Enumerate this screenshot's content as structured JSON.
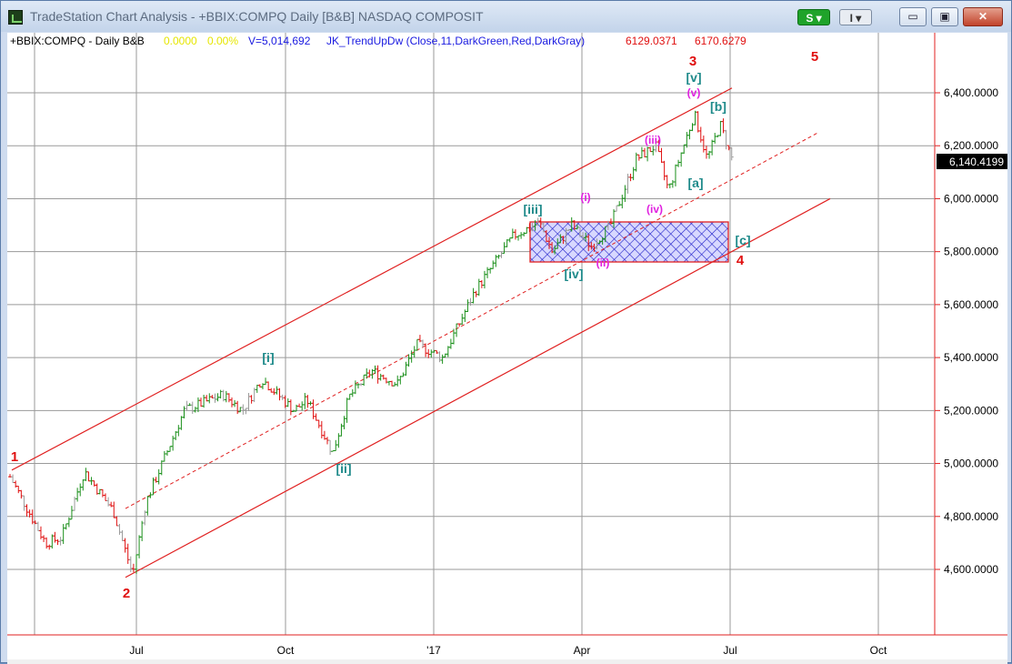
{
  "window": {
    "title": "TradeStation Chart Analysis - +BBIX:COMPQ Daily [B&B] NASDAQ COMPOSIT",
    "buttons": {
      "s_label": "S ▾",
      "i_label": "I ▾",
      "minimize": "▭",
      "maximize": "▣",
      "close": "✕"
    }
  },
  "chart": {
    "symbol_label": "+BBIX:COMPQ - Daily  B&B",
    "bb_value": "0.0000",
    "bb_pct": "0.00%",
    "volume": "V=5,014,692",
    "indicator": "JK_TrendUpDw (Close,11,DarkGreen,Red,DarkGray)",
    "ind_val1": "6129.0371",
    "ind_val2": "6170.6279",
    "last_price": "6,140.4199",
    "colors": {
      "up": "#1a8f1a",
      "down": "#e01010",
      "neutral": "#9a9a9a",
      "channel": "#e02020",
      "wave_teal": "#1e8a8a",
      "wave_magenta": "#e020e0",
      "box_fill": "#2020c8"
    }
  },
  "chart_data": {
    "type": "ohlc-bar",
    "title": "+BBIX:COMPQ - Daily",
    "x_axis": {
      "labels": [
        "Jul",
        "Oct",
        "'17",
        "Apr",
        "Jul",
        "Oct"
      ]
    },
    "y_axis": {
      "labels": [
        "6,400.0000",
        "6,200.0000",
        "6,000.0000",
        "5,800.0000",
        "5,600.0000",
        "5,400.0000",
        "5,200.0000",
        "5,000.0000",
        "4,800.0000",
        "4,600.0000"
      ],
      "range": [
        4400,
        6600
      ]
    },
    "waves_major": [
      "1",
      "2",
      "3",
      "4",
      "5"
    ],
    "waves_intermediate": [
      "[i]",
      "[ii]",
      "[iii]",
      "[iv]",
      "[v]"
    ],
    "waves_abc": [
      "[a]",
      "[b]",
      "[c]"
    ],
    "waves_minor": [
      "(i)",
      "(ii)",
      "(iii)",
      "(iv)",
      "(v)"
    ],
    "anchor_points": [
      {
        "x": 0.0,
        "y": 4950
      },
      {
        "x": 0.055,
        "y": 4700
      },
      {
        "x": 0.08,
        "y": 4720
      },
      {
        "x": 0.115,
        "y": 4970
      },
      {
        "x": 0.16,
        "y": 4820
      },
      {
        "x": 0.19,
        "y": 4580
      },
      {
        "x": 0.21,
        "y": 4850
      },
      {
        "x": 0.27,
        "y": 5200
      },
      {
        "x": 0.33,
        "y": 5260
      },
      {
        "x": 0.36,
        "y": 5200
      },
      {
        "x": 0.39,
        "y": 5320
      },
      {
        "x": 0.44,
        "y": 5200
      },
      {
        "x": 0.46,
        "y": 5240
      },
      {
        "x": 0.5,
        "y": 5040
      },
      {
        "x": 0.525,
        "y": 5250
      },
      {
        "x": 0.56,
        "y": 5350
      },
      {
        "x": 0.6,
        "y": 5300
      },
      {
        "x": 0.63,
        "y": 5450
      },
      {
        "x": 0.67,
        "y": 5400
      },
      {
        "x": 0.72,
        "y": 5650
      },
      {
        "x": 0.78,
        "y": 5860
      },
      {
        "x": 0.82,
        "y": 5910
      },
      {
        "x": 0.84,
        "y": 5800
      },
      {
        "x": 0.87,
        "y": 5900
      },
      {
        "x": 0.9,
        "y": 5820
      },
      {
        "x": 0.93,
        "y": 5900
      },
      {
        "x": 0.97,
        "y": 6150
      },
      {
        "x": 1.0,
        "y": 6200
      },
      {
        "x": 1.02,
        "y": 6030
      },
      {
        "x": 1.06,
        "y": 6320
      },
      {
        "x": 1.08,
        "y": 6150
      },
      {
        "x": 1.1,
        "y": 6280
      },
      {
        "x": 1.12,
        "y": 6140
      }
    ]
  }
}
